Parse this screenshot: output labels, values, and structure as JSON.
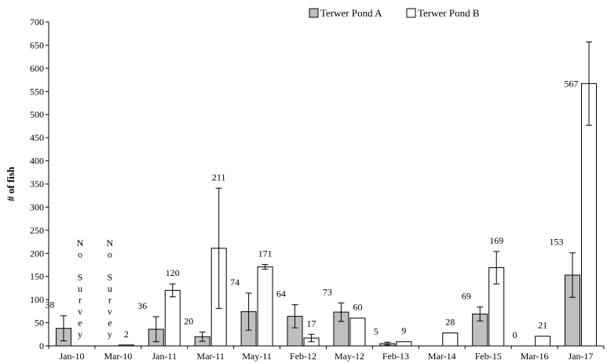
{
  "chart_data": {
    "type": "bar",
    "ylabel": "# of fish",
    "xlabel": "",
    "title": "",
    "ylim": [
      0,
      700
    ],
    "yticks": [
      0,
      50,
      100,
      150,
      200,
      250,
      300,
      350,
      400,
      450,
      500,
      550,
      600,
      650,
      700
    ],
    "categories": [
      "Jan-10",
      "Mar-10",
      "Jan-11",
      "Mar-11",
      "May-11",
      "Feb-12",
      "May-12",
      "Feb-13",
      "Mar-14",
      "Feb-15",
      "Mar-16",
      "Jan-17"
    ],
    "legend_position": "top",
    "series": [
      {
        "name": "Terwer Pond A",
        "color": "#bfbfbf",
        "values": [
          38,
          null,
          36,
          20,
          74,
          64,
          73,
          5,
          null,
          69,
          0,
          153
        ],
        "labels": [
          "38",
          "",
          "36",
          "20",
          "74",
          "64",
          "73",
          "5",
          "",
          "69",
          "0",
          "153"
        ],
        "errors": [
          27,
          null,
          27,
          10,
          40,
          25,
          20,
          3,
          null,
          15,
          null,
          48
        ]
      },
      {
        "name": "Terwer Pond B",
        "color": "#ffffff",
        "values": [
          null,
          2,
          120,
          211,
          171,
          17,
          60,
          9,
          28,
          169,
          21,
          567
        ],
        "labels": [
          "",
          "2",
          "120",
          "211",
          "171",
          "17",
          "60",
          "9",
          "28",
          "169",
          "21",
          "567"
        ],
        "errors": [
          null,
          null,
          14,
          130,
          5,
          8,
          null,
          null,
          null,
          35,
          null,
          90
        ]
      }
    ],
    "annotations": [
      {
        "category": 0,
        "series": 1,
        "text": [
          "N",
          "o",
          "",
          "S",
          "u",
          "r",
          "v",
          "e",
          "y"
        ]
      },
      {
        "category": 1,
        "series": 0,
        "text": [
          "N",
          "o",
          "",
          "S",
          "u",
          "r",
          "v",
          "e",
          "y"
        ]
      }
    ]
  }
}
